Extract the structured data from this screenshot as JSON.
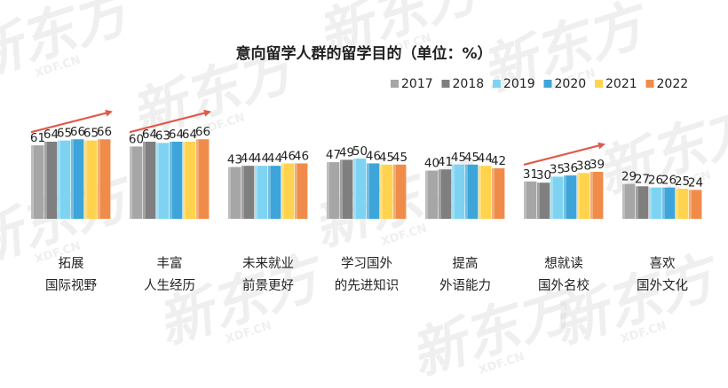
{
  "chart_data": {
    "type": "bar",
    "title": "意向留学人群的留学目的（单位：%）",
    "categories": [
      [
        "拓展",
        "国际视野"
      ],
      [
        "丰富",
        "人生经历"
      ],
      [
        "未来就业",
        "前景更好"
      ],
      [
        "学习国外",
        "的先进知识"
      ],
      [
        "提高",
        "外语能力"
      ],
      [
        "想就读",
        "国外名校"
      ],
      [
        "喜欢",
        "国外文化"
      ]
    ],
    "series": [
      {
        "name": "2017",
        "color": "#a6a6a6",
        "values": [
          61,
          60,
          43,
          47,
          40,
          31,
          29
        ]
      },
      {
        "name": "2018",
        "color": "#7f7f7f",
        "values": [
          64,
          64,
          44,
          49,
          41,
          30,
          27
        ]
      },
      {
        "name": "2019",
        "color": "#7fd3f2",
        "values": [
          65,
          63,
          44,
          50,
          45,
          35,
          26
        ]
      },
      {
        "name": "2020",
        "color": "#3da5d9",
        "values": [
          66,
          64,
          44,
          46,
          45,
          36,
          26
        ]
      },
      {
        "name": "2021",
        "color": "#ffd34d",
        "values": [
          65,
          64,
          46,
          45,
          44,
          38,
          25
        ]
      },
      {
        "name": "2022",
        "color": "#f08c4a",
        "values": [
          66,
          66,
          46,
          45,
          42,
          39,
          24
        ]
      }
    ],
    "legend_position": "top-right",
    "grid": false,
    "trend_arrows_on": [
      "拓展",
      "丰富",
      "想就读"
    ],
    "arrow_color": "#e05a4a"
  },
  "watermark": {
    "text": "新东方",
    "sub": "XDF.CN"
  }
}
